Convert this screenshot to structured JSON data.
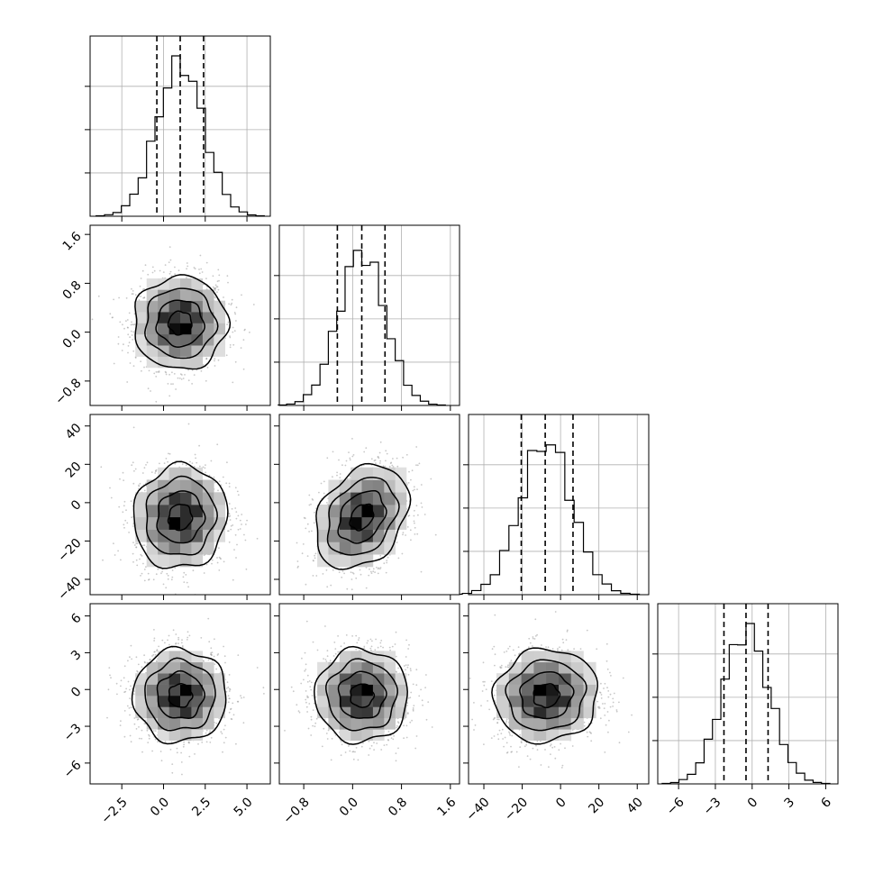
{
  "chart_data": {
    "type": "corner",
    "n_params": 4,
    "params": [
      {
        "mean": 1.0,
        "sd": 1.4,
        "range": [
          -4.4,
          6.4
        ],
        "ticks": [
          -2.5,
          0.0,
          2.5,
          5.0
        ],
        "tick_labels": [
          "−2.5",
          "0.0",
          "2.5",
          "5.0"
        ],
        "quantiles": [
          -0.4,
          1.0,
          2.4
        ]
      },
      {
        "mean": 0.15,
        "sd": 0.38,
        "range": [
          -1.2,
          1.75
        ],
        "ticks": [
          -0.8,
          0.0,
          0.8,
          1.6
        ],
        "tick_labels": [
          "−0.8",
          "0.0",
          "0.8",
          "1.6"
        ],
        "quantiles": [
          -0.25,
          0.15,
          0.53
        ]
      },
      {
        "mean": -7.5,
        "sd": 13.5,
        "range": [
          -48,
          46
        ],
        "ticks": [
          -40,
          -20,
          0,
          20,
          40
        ],
        "tick_labels": [
          "−40",
          "−20",
          "0",
          "20",
          "40"
        ],
        "quantiles": [
          -20.5,
          -8.0,
          6.5
        ]
      },
      {
        "mean": -0.5,
        "sd": 1.9,
        "range": [
          -7.7,
          7.0
        ],
        "ticks": [
          -6,
          -3,
          0,
          3,
          6
        ],
        "tick_labels": [
          "−6",
          "−3",
          "0",
          "3",
          "6"
        ],
        "quantiles": [
          -2.3,
          -0.5,
          1.3
        ]
      }
    ],
    "correlations": [
      {
        "i": 1,
        "j": 0,
        "rho": 0.0
      },
      {
        "i": 2,
        "j": 0,
        "rho": 0.05
      },
      {
        "i": 2,
        "j": 1,
        "rho": 0.3
      },
      {
        "i": 3,
        "j": 0,
        "rho": 0.0
      },
      {
        "i": 3,
        "j": 1,
        "rho": 0.0
      },
      {
        "i": 3,
        "j": 2,
        "rho": 0.05
      }
    ],
    "histogram_bins": 20,
    "contour_levels_sigma": [
      0.5,
      1.0,
      1.5,
      2.0
    ],
    "grid": true,
    "colors": {
      "scatter": "#9a9a9a",
      "density_max": "#000000",
      "lines": "#000000"
    }
  }
}
